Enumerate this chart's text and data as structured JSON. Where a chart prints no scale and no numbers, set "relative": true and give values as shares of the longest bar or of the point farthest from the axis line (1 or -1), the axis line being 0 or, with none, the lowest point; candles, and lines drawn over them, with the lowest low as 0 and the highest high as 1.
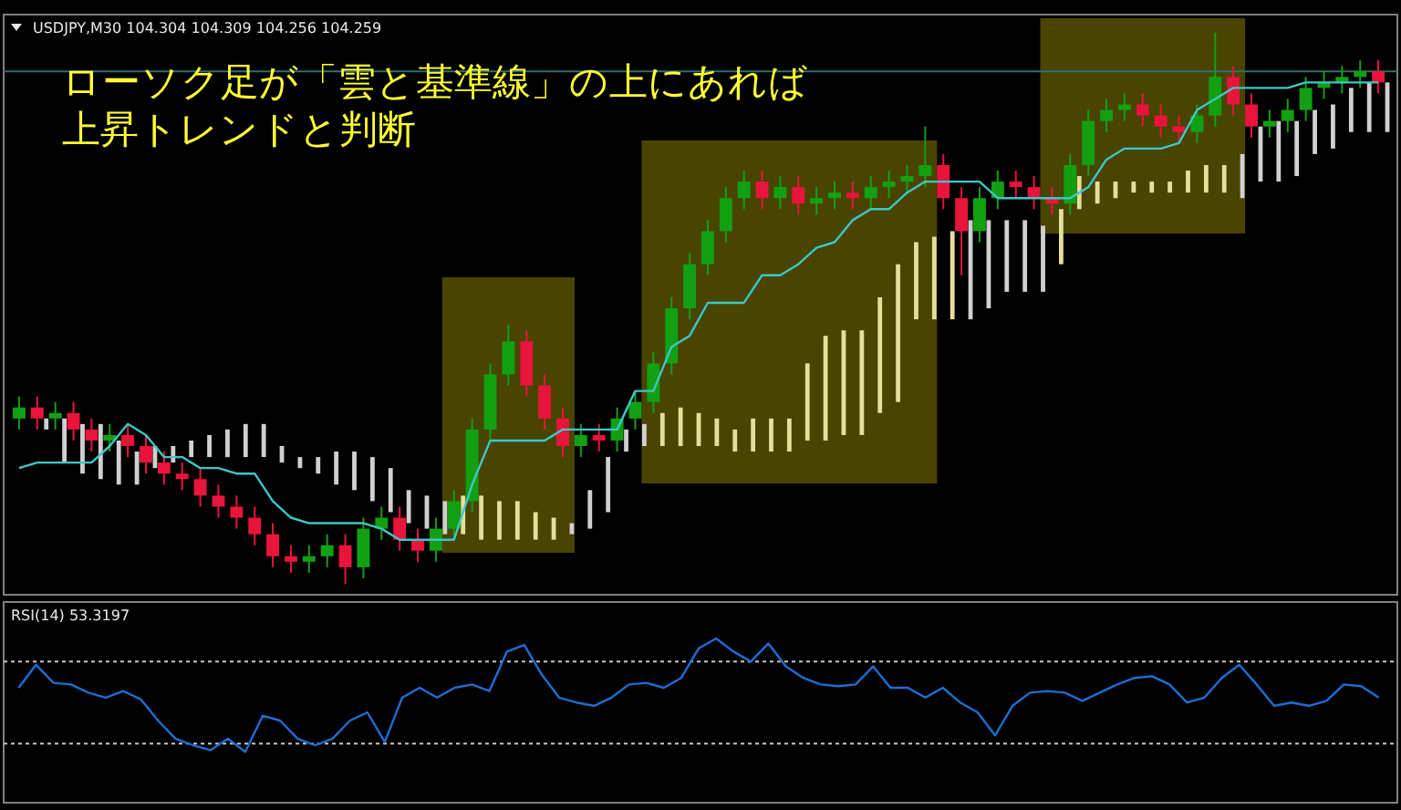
{
  "chart_data": [
    {
      "type": "candlestick",
      "title": "USDJPY,M30 104.304 104.309 104.256 104.259",
      "relative": true,
      "annotations": [
        "ローソク足が「雲と基準線」の上にあれば",
        "上昇トレンドと判断"
      ],
      "ref_lines": [
        {
          "axis": "y",
          "value": 0.93,
          "color": "#2f6f6f"
        }
      ],
      "categories": [
        null,
        null,
        null,
        null,
        null,
        null,
        null,
        null,
        null,
        null,
        null,
        null,
        null,
        null,
        null,
        null,
        null,
        null,
        null,
        null,
        null,
        null,
        null,
        null,
        null,
        null,
        null,
        null,
        null,
        null,
        null,
        null,
        null,
        null,
        null,
        null,
        null,
        null,
        null,
        null,
        null,
        null,
        null,
        null,
        null,
        null,
        null,
        null,
        null,
        null,
        null,
        null,
        null,
        null,
        null,
        null,
        null,
        null,
        null,
        null,
        null,
        null,
        null,
        null,
        null,
        null,
        null,
        null,
        null,
        null,
        null,
        null,
        null,
        null,
        null,
        null
      ],
      "ohlc": [
        [
          0.3,
          0.34,
          0.28,
          0.32
        ],
        [
          0.32,
          0.34,
          0.28,
          0.3
        ],
        [
          0.3,
          0.33,
          0.28,
          0.31
        ],
        [
          0.31,
          0.33,
          0.26,
          0.28
        ],
        [
          0.28,
          0.3,
          0.24,
          0.26
        ],
        [
          0.26,
          0.29,
          0.24,
          0.27
        ],
        [
          0.27,
          0.29,
          0.23,
          0.25
        ],
        [
          0.25,
          0.27,
          0.2,
          0.22
        ],
        [
          0.22,
          0.24,
          0.18,
          0.2
        ],
        [
          0.2,
          0.22,
          0.17,
          0.19
        ],
        [
          0.19,
          0.21,
          0.14,
          0.16
        ],
        [
          0.16,
          0.18,
          0.12,
          0.14
        ],
        [
          0.14,
          0.16,
          0.1,
          0.12
        ],
        [
          0.12,
          0.14,
          0.07,
          0.09
        ],
        [
          0.09,
          0.11,
          0.03,
          0.05
        ],
        [
          0.05,
          0.07,
          0.02,
          0.04
        ],
        [
          0.04,
          0.07,
          0.02,
          0.05
        ],
        [
          0.05,
          0.09,
          0.03,
          0.07
        ],
        [
          0.07,
          0.09,
          0.0,
          0.03
        ],
        [
          0.03,
          0.12,
          0.01,
          0.1
        ],
        [
          0.1,
          0.14,
          0.08,
          0.12
        ],
        [
          0.12,
          0.14,
          0.06,
          0.08
        ],
        [
          0.08,
          0.1,
          0.04,
          0.06
        ],
        [
          0.06,
          0.12,
          0.04,
          0.1
        ],
        [
          0.1,
          0.17,
          0.08,
          0.15
        ],
        [
          0.15,
          0.3,
          0.13,
          0.28
        ],
        [
          0.28,
          0.4,
          0.26,
          0.38
        ],
        [
          0.38,
          0.47,
          0.36,
          0.44
        ],
        [
          0.44,
          0.46,
          0.34,
          0.36
        ],
        [
          0.36,
          0.38,
          0.28,
          0.3
        ],
        [
          0.3,
          0.32,
          0.23,
          0.25
        ],
        [
          0.25,
          0.29,
          0.23,
          0.27
        ],
        [
          0.27,
          0.29,
          0.24,
          0.26
        ],
        [
          0.26,
          0.32,
          0.24,
          0.3
        ],
        [
          0.3,
          0.35,
          0.28,
          0.33
        ],
        [
          0.33,
          0.42,
          0.31,
          0.4
        ],
        [
          0.4,
          0.52,
          0.38,
          0.5
        ],
        [
          0.5,
          0.6,
          0.48,
          0.58
        ],
        [
          0.58,
          0.66,
          0.56,
          0.64
        ],
        [
          0.64,
          0.72,
          0.62,
          0.7
        ],
        [
          0.7,
          0.75,
          0.68,
          0.73
        ],
        [
          0.73,
          0.75,
          0.68,
          0.7
        ],
        [
          0.7,
          0.74,
          0.68,
          0.72
        ],
        [
          0.72,
          0.74,
          0.67,
          0.69
        ],
        [
          0.69,
          0.72,
          0.67,
          0.7
        ],
        [
          0.7,
          0.73,
          0.68,
          0.71
        ],
        [
          0.71,
          0.73,
          0.68,
          0.7
        ],
        [
          0.7,
          0.74,
          0.68,
          0.72
        ],
        [
          0.72,
          0.75,
          0.7,
          0.73
        ],
        [
          0.73,
          0.76,
          0.71,
          0.74
        ],
        [
          0.74,
          0.83,
          0.72,
          0.76
        ],
        [
          0.76,
          0.78,
          0.68,
          0.7
        ],
        [
          0.7,
          0.72,
          0.56,
          0.64
        ],
        [
          0.64,
          0.72,
          0.62,
          0.7
        ],
        [
          0.7,
          0.75,
          0.68,
          0.73
        ],
        [
          0.73,
          0.75,
          0.7,
          0.72
        ],
        [
          0.72,
          0.74,
          0.68,
          0.7
        ],
        [
          0.7,
          0.72,
          0.67,
          0.69
        ],
        [
          0.69,
          0.78,
          0.67,
          0.76
        ],
        [
          0.76,
          0.86,
          0.74,
          0.84
        ],
        [
          0.84,
          0.88,
          0.82,
          0.86
        ],
        [
          0.86,
          0.89,
          0.84,
          0.87
        ],
        [
          0.87,
          0.89,
          0.83,
          0.85
        ],
        [
          0.85,
          0.87,
          0.81,
          0.83
        ],
        [
          0.83,
          0.85,
          0.8,
          0.82
        ],
        [
          0.82,
          0.87,
          0.8,
          0.85
        ],
        [
          0.85,
          1.0,
          0.83,
          0.92
        ],
        [
          0.92,
          0.94,
          0.85,
          0.87
        ],
        [
          0.87,
          0.89,
          0.81,
          0.83
        ],
        [
          0.83,
          0.86,
          0.81,
          0.84
        ],
        [
          0.84,
          0.88,
          0.82,
          0.86
        ],
        [
          0.86,
          0.92,
          0.84,
          0.9
        ],
        [
          0.9,
          0.93,
          0.88,
          0.91
        ],
        [
          0.91,
          0.94,
          0.89,
          0.92
        ],
        [
          0.92,
          0.95,
          0.9,
          0.93
        ],
        [
          0.93,
          0.95,
          0.89,
          0.91
        ]
      ],
      "colors": [
        "#12a012",
        "#e8143c",
        "#12a012",
        "#e8143c",
        "#e8143c",
        "#12a012",
        "#e8143c",
        "#e8143c",
        "#e8143c",
        "#e8143c",
        "#e8143c",
        "#e8143c",
        "#e8143c",
        "#e8143c",
        "#e8143c",
        "#e8143c",
        "#12a012",
        "#12a012",
        "#e8143c",
        "#12a012",
        "#12a012",
        "#e8143c",
        "#e8143c",
        "#12a012",
        "#12a012",
        "#12a012",
        "#12a012",
        "#12a012",
        "#e8143c",
        "#e8143c",
        "#e8143c",
        "#12a012",
        "#e8143c",
        "#12a012",
        "#12a012",
        "#12a012",
        "#12a012",
        "#12a012",
        "#12a012",
        "#12a012",
        "#12a012",
        "#e8143c",
        "#12a012",
        "#e8143c",
        "#12a012",
        "#12a012",
        "#e8143c",
        "#12a012",
        "#12a012",
        "#12a012",
        "#12a012",
        "#e8143c",
        "#e8143c",
        "#12a012",
        "#12a012",
        "#e8143c",
        "#e8143c",
        "#e8143c",
        "#12a012",
        "#12a012",
        "#12a012",
        "#12a012",
        "#e8143c",
        "#e8143c",
        "#e8143c",
        "#12a012",
        "#12a012",
        "#e8143c",
        "#e8143c",
        "#12a012",
        "#12a012",
        "#12a012",
        "#12a012",
        "#12a012",
        "#12a012",
        "#e8143c"
      ],
      "series": [
        {
          "type": "bar",
          "base": [
            null,
            0.28,
            0.22,
            0.2,
            0.19,
            0.18,
            0.18,
            0.21,
            0.22,
            0.23,
            0.23,
            0.23,
            0.23,
            0.23,
            0.22,
            0.21,
            0.2,
            0.18,
            0.17,
            0.15,
            0.13,
            0.11,
            0.1,
            0.09,
            0.09,
            0.08,
            0.08,
            0.08,
            0.08,
            0.08,
            0.09,
            0.1,
            0.13,
            0.24,
            0.25,
            0.25,
            0.25,
            0.25,
            0.25,
            0.24,
            0.24,
            0.24,
            0.24,
            0.26,
            0.26,
            0.27,
            0.27,
            0.31,
            0.33,
            0.48,
            0.48,
            0.48,
            0.48,
            0.5,
            0.53,
            0.53,
            0.53,
            0.58,
            0.68,
            0.69,
            0.7,
            0.71,
            0.71,
            0.71,
            0.71,
            0.71,
            0.71,
            0.7,
            0.73,
            0.73,
            0.74,
            0.78,
            0.79,
            0.82,
            0.82,
            0.82
          ],
          "values": [
            null,
            0.02,
            0.08,
            0.09,
            0.1,
            0.08,
            0.06,
            0.04,
            0.03,
            0.03,
            0.04,
            0.05,
            0.06,
            0.06,
            0.03,
            0.02,
            0.03,
            0.06,
            0.07,
            0.08,
            0.08,
            0.06,
            0.06,
            0.06,
            0.07,
            0.08,
            0.07,
            0.07,
            0.05,
            0.04,
            0.02,
            0.07,
            0.1,
            0.04,
            0.04,
            0.06,
            0.07,
            0.06,
            0.05,
            0.04,
            0.06,
            0.06,
            0.06,
            0.14,
            0.19,
            0.19,
            0.19,
            0.21,
            0.25,
            0.14,
            0.15,
            0.16,
            0.18,
            0.16,
            0.13,
            0.13,
            0.12,
            0.1,
            0.06,
            0.04,
            0.03,
            0.02,
            0.02,
            0.02,
            0.04,
            0.05,
            0.05,
            0.08,
            0.1,
            0.11,
            0.1,
            0.08,
            0.08,
            0.08,
            0.09,
            0.09
          ],
          "colors": [
            null,
            "#d0d0d0",
            "#d0d0d0",
            "#d0d0d0",
            "#d0d0d0",
            "#d0d0d0",
            "#d0d0d0",
            "#d0d0d0",
            "#d0d0d0",
            "#d0d0d0",
            "#d0d0d0",
            "#d0d0d0",
            "#d0d0d0",
            "#d0d0d0",
            "#d0d0d0",
            "#d0d0d0",
            "#d0d0d0",
            "#d0d0d0",
            "#d0d0d0",
            "#d0d0d0",
            "#d0d0d0",
            "#d0d0d0",
            "#d0d0d0",
            "#d0d0d0",
            "#e6df9a",
            "#e6df9a",
            "#e6df9a",
            "#e6df9a",
            "#e6df9a",
            "#e6df9a",
            "#d0d0d0",
            "#d0d0d0",
            "#d0d0d0",
            "#d0d0d0",
            "#d0d0d0",
            "#e6df9a",
            "#e6df9a",
            "#e6df9a",
            "#e6df9a",
            "#e6df9a",
            "#e6df9a",
            "#e6df9a",
            "#e6df9a",
            "#e6df9a",
            "#e6df9a",
            "#e6df9a",
            "#e6df9a",
            "#e6df9a",
            "#e6df9a",
            "#e6df9a",
            "#e6df9a",
            "#e6df9a",
            "#d0d0d0",
            "#d0d0d0",
            "#d0d0d0",
            "#d0d0d0",
            "#d0d0d0",
            "#e6df9a",
            "#e6df9a",
            "#e6df9a",
            "#e6df9a",
            "#e6df9a",
            "#e6df9a",
            "#e6df9a",
            "#e6df9a",
            "#e6df9a",
            "#e6df9a",
            "#d0d0d0",
            "#d0d0d0",
            "#d0d0d0",
            "#d0d0d0",
            "#d0d0d0",
            "#d0d0d0",
            "#d0d0d0",
            "#d0d0d0",
            "#d0d0d0"
          ]
        },
        {
          "type": "line",
          "color": "#3cc8c8",
          "values": [
            0.21,
            0.22,
            0.22,
            0.22,
            0.22,
            0.25,
            0.29,
            0.27,
            0.23,
            0.23,
            0.21,
            0.21,
            0.2,
            0.2,
            0.15,
            0.12,
            0.11,
            0.11,
            0.11,
            0.11,
            0.1,
            0.08,
            0.08,
            0.08,
            0.08,
            0.18,
            0.26,
            0.26,
            0.26,
            0.26,
            0.28,
            0.28,
            0.28,
            0.28,
            0.35,
            0.35,
            0.43,
            0.45,
            0.51,
            0.51,
            0.51,
            0.56,
            0.56,
            0.58,
            0.61,
            0.62,
            0.66,
            0.68,
            0.68,
            0.71,
            0.73,
            0.73,
            0.73,
            0.73,
            0.7,
            0.7,
            0.7,
            0.7,
            0.7,
            0.72,
            0.77,
            0.79,
            0.79,
            0.79,
            0.8,
            0.86,
            0.88,
            0.9,
            0.9,
            0.9,
            0.9,
            0.91,
            0.91,
            0.91,
            0.91,
            0.91
          ]
        }
      ]
    },
    {
      "type": "line",
      "title": "RSI(14) 53.3197",
      "relative": true,
      "line_style": "solid",
      "ref_lines": [
        {
          "axis": "y",
          "value": 0.86,
          "color": "#c8c8c8",
          "line_style": "dotted"
        },
        {
          "axis": "y",
          "value": 0.36,
          "color": "#c8c8c8",
          "line_style": "dotted"
        }
      ],
      "categories": [
        null,
        null,
        null,
        null,
        null,
        null,
        null,
        null,
        null,
        null,
        null,
        null,
        null,
        null,
        null,
        null,
        null,
        null,
        null,
        null,
        null,
        null,
        null,
        null,
        null,
        null,
        null,
        null,
        null,
        null,
        null,
        null,
        null,
        null,
        null,
        null,
        null,
        null,
        null,
        null,
        null,
        null,
        null,
        null,
        null,
        null,
        null,
        null,
        null,
        null,
        null,
        null,
        null,
        null,
        null,
        null,
        null,
        null,
        null,
        null,
        null,
        null,
        null,
        null,
        null,
        null,
        null,
        null,
        null,
        null,
        null,
        null,
        null,
        null,
        null,
        null,
        null,
        null,
        null
      ],
      "series": [
        {
          "color": "#1e6ed2",
          "values": [
            0.7,
            0.84,
            0.73,
            0.72,
            0.67,
            0.64,
            0.68,
            0.63,
            0.5,
            0.39,
            0.35,
            0.32,
            0.39,
            0.31,
            0.53,
            0.5,
            0.39,
            0.35,
            0.39,
            0.5,
            0.55,
            0.37,
            0.64,
            0.7,
            0.64,
            0.7,
            0.72,
            0.68,
            0.92,
            0.96,
            0.78,
            0.64,
            0.61,
            0.59,
            0.64,
            0.72,
            0.73,
            0.7,
            0.76,
            0.94,
            1,
            0.92,
            0.86,
            0.97,
            0.83,
            0.76,
            0.72,
            0.71,
            0.72,
            0.83,
            0.7,
            0.7,
            0.64,
            0.7,
            0.61,
            0.55,
            0.41,
            0.59,
            0.67,
            0.68,
            0.67,
            0.62,
            0.67,
            0.72,
            0.76,
            0.77,
            0.72,
            0.61,
            0.64,
            0.76,
            0.84,
            0.72,
            0.59,
            0.61,
            0.59,
            0.62,
            0.72,
            0.71,
            0.64
          ]
        }
      ]
    }
  ]
}
